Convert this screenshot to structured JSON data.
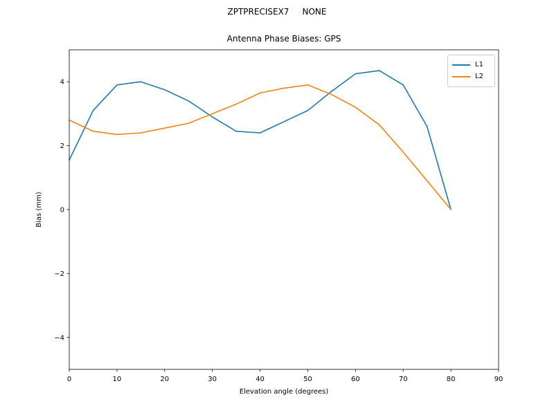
{
  "figure": {
    "suptitle": "ZPTPRECISEX7     NONE",
    "title": "Antenna Phase Biases: GPS"
  },
  "chart_data": {
    "type": "line",
    "suptitle": "ZPTPRECISEX7     NONE",
    "title": "Antenna Phase Biases: GPS",
    "xlabel": "Elevation angle (degrees)",
    "ylabel": "Bias (mm)",
    "xlim": [
      0,
      90
    ],
    "ylim": [
      -5,
      5
    ],
    "xticks": [
      0,
      10,
      20,
      30,
      40,
      50,
      60,
      70,
      80,
      90
    ],
    "yticks": [
      -4,
      -2,
      0,
      2,
      4
    ],
    "grid": false,
    "legend": {
      "position": "upper right",
      "entries": [
        "L1",
        "L2"
      ]
    },
    "x": [
      0,
      5,
      10,
      15,
      20,
      25,
      30,
      35,
      40,
      45,
      50,
      55,
      60,
      65,
      70,
      75,
      80
    ],
    "series": [
      {
        "name": "L1",
        "color": "#1f77b4",
        "values": [
          1.55,
          3.1,
          3.9,
          4.0,
          3.75,
          3.4,
          2.9,
          2.45,
          2.4,
          2.75,
          3.1,
          3.7,
          4.25,
          4.35,
          3.9,
          2.6,
          0.0
        ]
      },
      {
        "name": "L2",
        "color": "#ff7f0e",
        "values": [
          2.8,
          2.45,
          2.35,
          2.4,
          2.55,
          2.7,
          3.0,
          3.3,
          3.65,
          3.8,
          3.9,
          3.6,
          3.2,
          2.65,
          1.8,
          0.9,
          0.0
        ]
      }
    ]
  }
}
